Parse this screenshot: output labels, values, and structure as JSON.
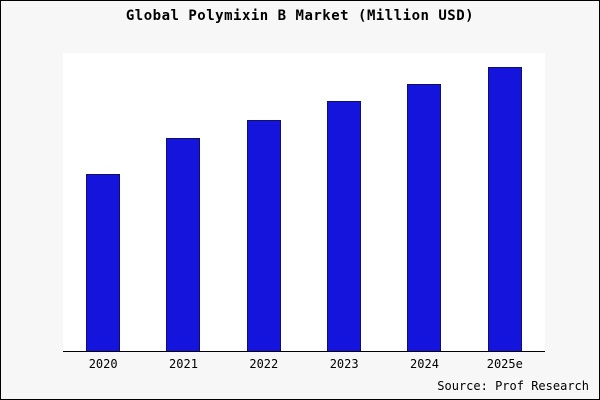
{
  "title": "Global Polymixin B Market (Million USD)",
  "source": "Source: Prof Research",
  "chart_data": {
    "type": "bar",
    "categories": [
      "2020",
      "2021",
      "2022",
      "2023",
      "2024",
      "2025e"
    ],
    "values": [
      62.5,
      75,
      81.5,
      88,
      94,
      100
    ],
    "title": "Global Polymixin B Market (Million USD)",
    "xlabel": "",
    "ylabel": "",
    "ylim": [
      0,
      105
    ],
    "grid": false,
    "legend_position": "none",
    "bar_color": "#1414dc",
    "bar_edge_color": "#10106a",
    "annotation": "Source: Prof Research"
  }
}
